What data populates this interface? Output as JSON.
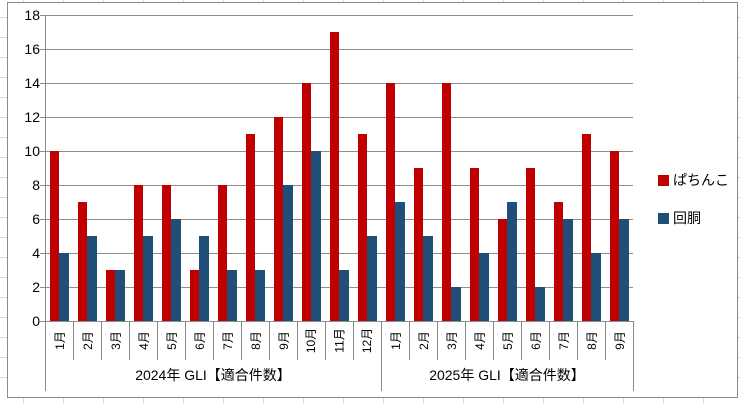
{
  "chart_data": {
    "type": "bar",
    "title": "",
    "ylim": [
      0,
      18
    ],
    "ytick_step": 2,
    "yticks": [
      0,
      2,
      4,
      6,
      8,
      10,
      12,
      14,
      16,
      18
    ],
    "grid": true,
    "legend_position": "right",
    "groups": [
      {
        "label": "2024年 GLI【適合件数】",
        "categories": [
          "1月",
          "2月",
          "3月",
          "4月",
          "5月",
          "6月",
          "7月",
          "8月",
          "9月",
          "10月",
          "11月",
          "12月"
        ]
      },
      {
        "label": "2025年 GLI【適合件数】",
        "categories": [
          "1月",
          "2月",
          "3月",
          "4月",
          "5月",
          "6月",
          "7月",
          "8月",
          "9月"
        ]
      }
    ],
    "series": [
      {
        "name": "ぱちんこ",
        "color": "#C00000",
        "values": [
          [
            10,
            7,
            3,
            8,
            8,
            3,
            8,
            11,
            12,
            14,
            17,
            11
          ],
          [
            14,
            9,
            14,
            9,
            6,
            9,
            7,
            11,
            10
          ]
        ]
      },
      {
        "name": "回胴",
        "color": "#1F4E79",
        "values": [
          [
            4,
            5,
            3,
            5,
            6,
            5,
            3,
            3,
            8,
            10,
            3,
            5
          ],
          [
            7,
            5,
            2,
            4,
            7,
            2,
            6,
            4,
            6
          ]
        ]
      }
    ]
  },
  "colors": {
    "gridline": "#8E8E8E",
    "axis": "#8A8A8A",
    "sheet_line": "#D9D9D9"
  }
}
